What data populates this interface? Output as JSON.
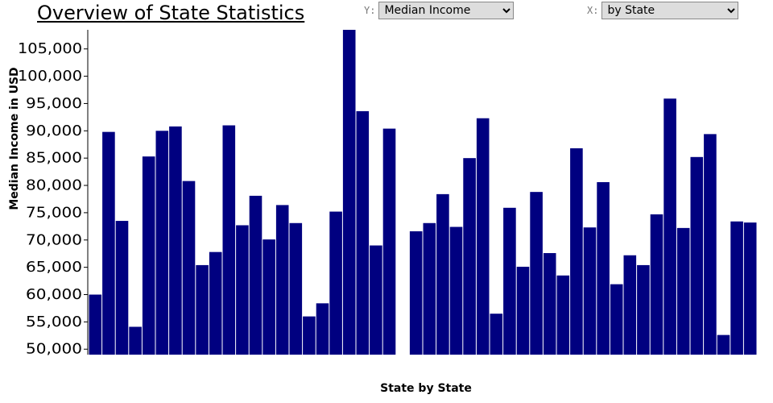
{
  "page": {
    "title": "Overview of State Statistics"
  },
  "controls": {
    "y_label": "Y:",
    "y_selected": "Median Income",
    "x_label": "X:",
    "x_selected": "by State"
  },
  "chart_data": {
    "type": "bar",
    "bar_color": "#000080",
    "ylabel": "Median Income in USD",
    "xlabel": "State by State",
    "ylim": [
      49000,
      108500
    ],
    "yticks": [
      50000,
      55000,
      60000,
      65000,
      70000,
      75000,
      80000,
      85000,
      90000,
      95000,
      100000,
      105000
    ],
    "ytick_labels": [
      "50,000",
      "55,000",
      "60,000",
      "65,000",
      "70,000",
      "75,000",
      "80,000",
      "85,000",
      "90,000",
      "95,000",
      "100,000",
      "105,000"
    ],
    "grid": false,
    "values": [
      60000,
      89800,
      73500,
      54100,
      85300,
      90000,
      90800,
      80800,
      65400,
      67800,
      91000,
      72700,
      78100,
      70100,
      76400,
      73100,
      56000,
      58400,
      75200,
      108500,
      93600,
      69000,
      90400,
      null,
      71600,
      73100,
      78400,
      72400,
      85000,
      92300,
      56500,
      75900,
      65100,
      78800,
      67600,
      63500,
      86800,
      72300,
      80600,
      61900,
      67200,
      65400,
      74700,
      95900,
      72200,
      85200,
      89400,
      52600,
      73400,
      73200
    ]
  }
}
